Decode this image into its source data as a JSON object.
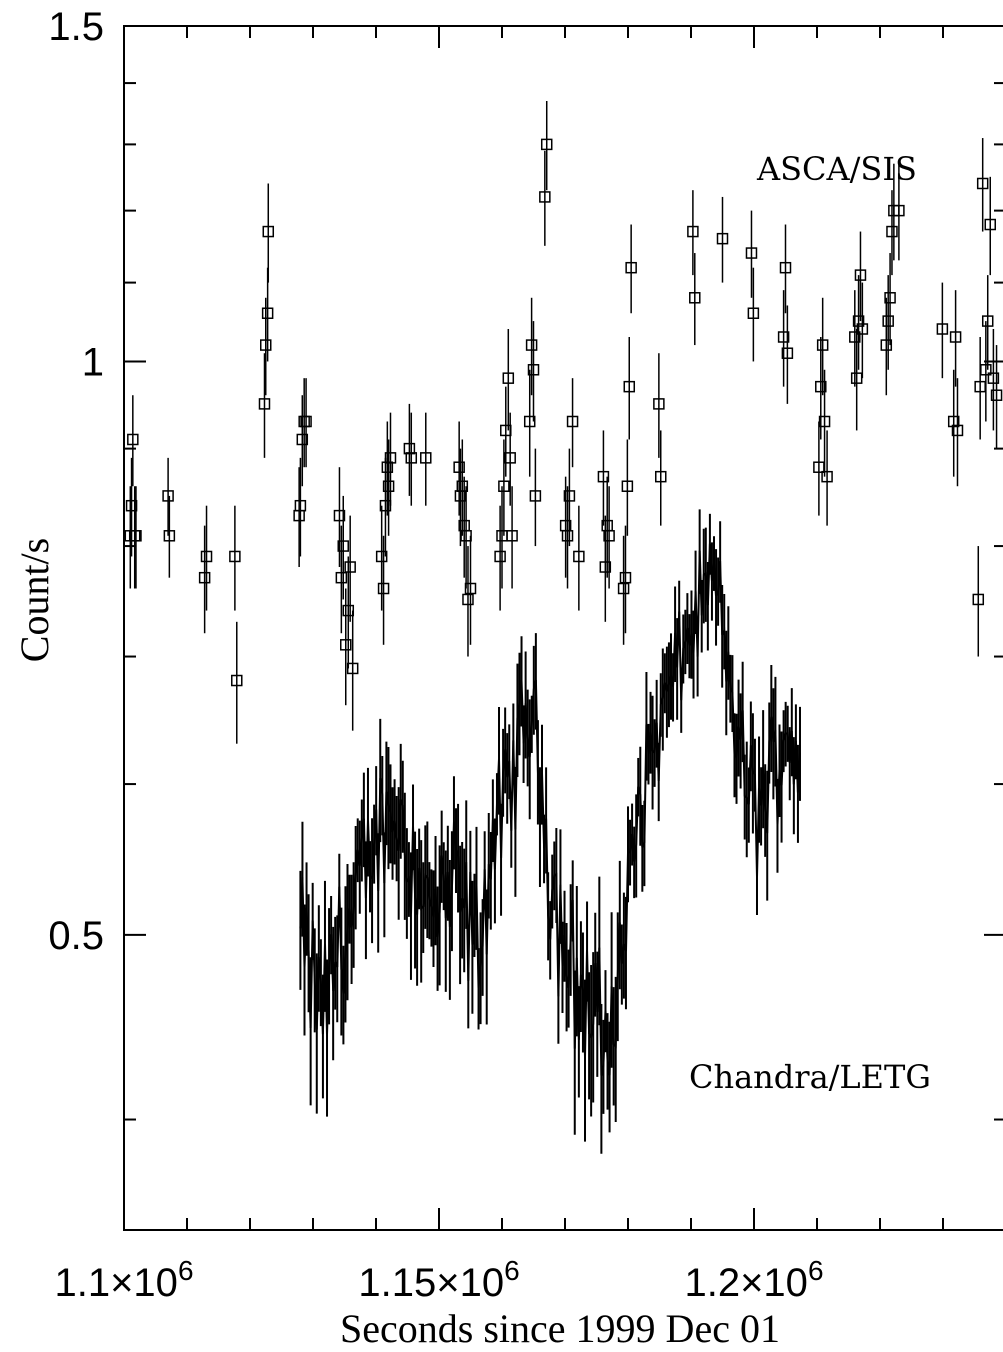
{
  "chart_data": {
    "type": "scatter",
    "title": "",
    "xlabel": "Seconds since 1999 Dec 01",
    "ylabel": "Count/s",
    "x_ticks": [
      {
        "value": 1100000,
        "label_base": "1.1×10",
        "label_exp": "6"
      },
      {
        "value": 1150000,
        "label_base": "1.15×10",
        "label_exp": "6"
      },
      {
        "value": 1200000,
        "label_base": "1.2×10",
        "label_exp": "6"
      }
    ],
    "y_ticks": [
      {
        "value": 0.5,
        "label": "0.5"
      },
      {
        "value": 1.0,
        "label": "1"
      },
      {
        "value": 1.5,
        "label": "1.5"
      }
    ],
    "xlim": [
      1100000,
      1240000
    ],
    "ylim": [
      0.35,
      1.5
    ],
    "yscale": "log",
    "grid": false,
    "annotations": [
      "ASCA/SIS",
      "Chandra/LETG"
    ],
    "series": [
      {
        "name": "ASCA/SIS",
        "marker": "square",
        "x": [
          1101000,
          1101200,
          1101400,
          1101700,
          1101900,
          1107000,
          1107200,
          1112800,
          1113100,
          1117600,
          1117900,
          1122300,
          1122500,
          1122800,
          1122900,
          1127800,
          1128000,
          1128300,
          1128600,
          1128900,
          1134200,
          1134500,
          1134800,
          1135200,
          1135600,
          1135900,
          1136300,
          1140900,
          1141200,
          1141500,
          1141800,
          1142000,
          1142300,
          1145300,
          1145600,
          1147900,
          1153200,
          1153400,
          1153700,
          1154000,
          1154300,
          1154600,
          1155000,
          1159700,
          1160000,
          1160300,
          1160600,
          1161000,
          1161300,
          1161600,
          1164400,
          1164700,
          1165000,
          1165300,
          1166800,
          1167100,
          1170100,
          1170400,
          1170700,
          1171200,
          1172200,
          1176100,
          1176400,
          1176700,
          1177000,
          1179300,
          1179600,
          1179900,
          1180200,
          1180500,
          1184900,
          1185200,
          1190300,
          1190600,
          1195000,
          1199600,
          1199900,
          1204700,
          1205000,
          1205300,
          1210300,
          1210600,
          1210900,
          1211200,
          1211600,
          1216000,
          1216300,
          1216600,
          1216900,
          1217200,
          1221000,
          1221300,
          1221600,
          1221900,
          1222200,
          1223000,
          1229900,
          1231700,
          1232000,
          1232300,
          1235600,
          1235900,
          1236300,
          1236800,
          1237100,
          1237500,
          1238000,
          1238500
        ],
        "y": [
          0.81,
          0.84,
          0.91,
          0.81,
          0.81,
          0.85,
          0.81,
          0.77,
          0.79,
          0.79,
          0.68,
          0.95,
          1.02,
          1.06,
          1.17,
          0.83,
          0.84,
          0.91,
          0.93,
          0.93,
          0.83,
          0.77,
          0.8,
          0.71,
          0.74,
          0.78,
          0.69,
          0.79,
          0.76,
          0.84,
          0.88,
          0.86,
          0.89,
          0.9,
          0.89,
          0.89,
          0.88,
          0.85,
          0.86,
          0.82,
          0.81,
          0.75,
          0.76,
          0.79,
          0.81,
          0.86,
          0.92,
          0.98,
          0.89,
          0.81,
          0.93,
          1.02,
          0.99,
          0.85,
          1.22,
          1.3,
          0.82,
          0.81,
          0.85,
          0.93,
          0.79,
          0.87,
          0.78,
          0.82,
          0.81,
          0.76,
          0.77,
          0.86,
          0.97,
          1.12,
          0.95,
          0.87,
          1.17,
          1.08,
          1.16,
          1.14,
          1.06,
          1.03,
          1.12,
          1.01,
          0.88,
          0.97,
          1.02,
          0.93,
          0.87,
          1.03,
          0.98,
          1.05,
          1.11,
          1.04,
          1.02,
          1.05,
          1.08,
          1.17,
          1.2,
          1.2,
          1.04,
          0.93,
          1.03,
          0.92,
          0.75,
          0.97,
          1.24,
          0.99,
          1.05,
          1.18,
          0.98,
          0.96
        ],
        "err": [
          0.05,
          0.05,
          0.05,
          0.05,
          0.05,
          0.04,
          0.04,
          0.05,
          0.05,
          0.05,
          0.05,
          0.06,
          0.06,
          0.06,
          0.07,
          0.05,
          0.05,
          0.05,
          0.05,
          0.05,
          0.05,
          0.05,
          0.05,
          0.05,
          0.05,
          0.05,
          0.05,
          0.05,
          0.05,
          0.05,
          0.05,
          0.05,
          0.05,
          0.05,
          0.05,
          0.05,
          0.05,
          0.05,
          0.05,
          0.05,
          0.05,
          0.05,
          0.05,
          0.05,
          0.05,
          0.05,
          0.05,
          0.06,
          0.05,
          0.05,
          0.06,
          0.06,
          0.06,
          0.05,
          0.07,
          0.07,
          0.05,
          0.05,
          0.05,
          0.05,
          0.05,
          0.05,
          0.05,
          0.05,
          0.05,
          0.05,
          0.05,
          0.05,
          0.06,
          0.06,
          0.06,
          0.05,
          0.06,
          0.06,
          0.06,
          0.06,
          0.06,
          0.06,
          0.06,
          0.06,
          0.05,
          0.06,
          0.06,
          0.06,
          0.05,
          0.06,
          0.06,
          0.06,
          0.06,
          0.06,
          0.06,
          0.06,
          0.06,
          0.06,
          0.07,
          0.07,
          0.06,
          0.06,
          0.06,
          0.06,
          0.05,
          0.06,
          0.07,
          0.06,
          0.06,
          0.07,
          0.06,
          0.06
        ]
      },
      {
        "name": "Chandra/LETG",
        "marker": "none",
        "x_start": 1128000,
        "x_step": 325,
        "x_end": 1207600,
        "trend_knots": [
          [
            1128000,
            0.5
          ],
          [
            1130000,
            0.47
          ],
          [
            1131500,
            0.46
          ],
          [
            1133000,
            0.47
          ],
          [
            1134500,
            0.51
          ],
          [
            1136000,
            0.5
          ],
          [
            1137500,
            0.53
          ],
          [
            1139000,
            0.55
          ],
          [
            1140500,
            0.57
          ],
          [
            1142000,
            0.58
          ],
          [
            1143500,
            0.58
          ],
          [
            1145000,
            0.56
          ],
          [
            1146500,
            0.54
          ],
          [
            1148000,
            0.52
          ],
          [
            1149500,
            0.51
          ],
          [
            1151000,
            0.52
          ],
          [
            1152500,
            0.53
          ],
          [
            1154000,
            0.52
          ],
          [
            1155500,
            0.49
          ],
          [
            1157000,
            0.51
          ],
          [
            1158500,
            0.56
          ],
          [
            1160000,
            0.58
          ],
          [
            1161500,
            0.6
          ],
          [
            1163000,
            0.64
          ],
          [
            1164500,
            0.66
          ],
          [
            1166000,
            0.62
          ],
          [
            1167500,
            0.54
          ],
          [
            1169000,
            0.51
          ],
          [
            1170500,
            0.49
          ],
          [
            1172000,
            0.47
          ],
          [
            1173500,
            0.46
          ],
          [
            1175000,
            0.45
          ],
          [
            1176500,
            0.44
          ],
          [
            1178000,
            0.46
          ],
          [
            1179500,
            0.5
          ],
          [
            1181000,
            0.56
          ],
          [
            1182500,
            0.6
          ],
          [
            1184000,
            0.63
          ],
          [
            1185500,
            0.65
          ],
          [
            1187000,
            0.68
          ],
          [
            1188500,
            0.7
          ],
          [
            1190000,
            0.72
          ],
          [
            1191500,
            0.75
          ],
          [
            1193000,
            0.77
          ],
          [
            1194500,
            0.75
          ],
          [
            1196000,
            0.68
          ],
          [
            1197500,
            0.63
          ],
          [
            1199000,
            0.6
          ],
          [
            1200500,
            0.58
          ],
          [
            1202000,
            0.6
          ],
          [
            1203500,
            0.62
          ],
          [
            1205000,
            0.64
          ],
          [
            1206500,
            0.63
          ],
          [
            1207600,
            0.6
          ]
        ],
        "scatter_amplitude": 0.035,
        "typical_err": 0.03
      }
    ]
  }
}
